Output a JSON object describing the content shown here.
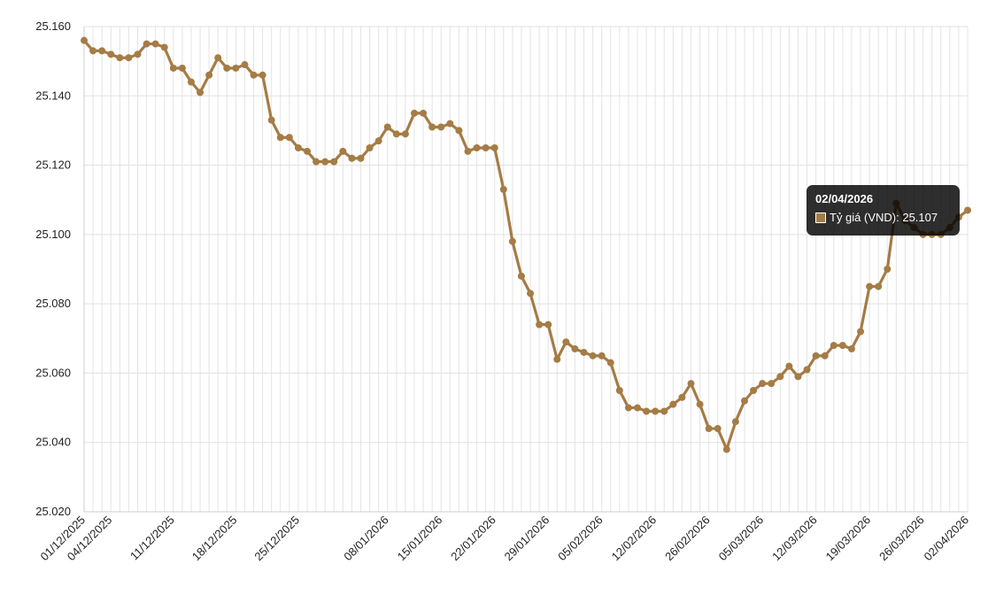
{
  "chart_data": {
    "type": "line",
    "y_ticks": [
      "25.020",
      "25.040",
      "25.060",
      "25.080",
      "25.100",
      "25.120",
      "25.140",
      "25.160"
    ],
    "ylim": [
      25.02,
      25.16
    ],
    "grid": true,
    "x_tick_labels": [
      "01/12/2025",
      "04/12/2025",
      "11/12/2025",
      "18/12/2025",
      "25/12/2025",
      "08/01/2026",
      "15/01/2026",
      "22/01/2026",
      "29/01/2026",
      "05/02/2026",
      "12/02/2026",
      "26/02/2026",
      "05/03/2026",
      "12/03/2026",
      "19/03/2026",
      "26/03/2026",
      "02/04/2026"
    ],
    "series": [
      {
        "name": "Tỷ giá (VND)",
        "color": "#a57c45",
        "values": [
          25.156,
          25.153,
          25.153,
          25.152,
          25.151,
          25.151,
          25.152,
          25.155,
          25.155,
          25.154,
          25.148,
          25.148,
          25.144,
          25.141,
          25.146,
          25.151,
          25.148,
          25.148,
          25.149,
          25.146,
          25.146,
          25.133,
          25.128,
          25.128,
          25.125,
          25.124,
          25.121,
          25.121,
          25.121,
          25.124,
          25.122,
          25.122,
          25.125,
          25.127,
          25.131,
          25.129,
          25.129,
          25.135,
          25.135,
          25.131,
          25.131,
          25.132,
          25.13,
          25.124,
          25.125,
          25.125,
          25.125,
          25.113,
          25.098,
          25.088,
          25.083,
          25.074,
          25.074,
          25.064,
          25.069,
          25.067,
          25.066,
          25.065,
          25.065,
          25.063,
          25.055,
          25.05,
          25.05,
          25.049,
          25.049,
          25.049,
          25.051,
          25.053,
          25.057,
          25.051,
          25.044,
          25.044,
          25.038,
          25.046,
          25.052,
          25.055,
          25.057,
          25.057,
          25.059,
          25.062,
          25.059,
          25.061,
          25.065,
          25.065,
          25.068,
          25.068,
          25.067,
          25.072,
          25.085,
          25.085,
          25.09,
          25.109,
          25.104,
          25.102,
          25.1,
          25.1,
          25.1,
          25.102,
          25.105,
          25.107
        ]
      }
    ],
    "tooltip": {
      "title": "02/04/2026",
      "label": "Tỷ giá (VND): 25.107"
    }
  }
}
